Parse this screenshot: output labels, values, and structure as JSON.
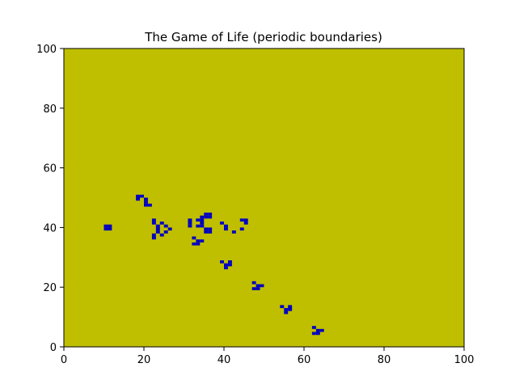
{
  "chart_data": {
    "type": "heatmap",
    "title": "The Game of Life (periodic boundaries)",
    "xlabel": "",
    "ylabel": "",
    "xlim": [
      0,
      100
    ],
    "ylim": [
      0,
      100
    ],
    "xticks": [
      0,
      20,
      40,
      60,
      80,
      100
    ],
    "yticks": [
      0,
      20,
      40,
      60,
      80,
      100
    ],
    "grid": false,
    "colors": {
      "dead": "#bfbf00",
      "alive": "#0000bf"
    },
    "alive_cells": [
      [
        10,
        39
      ],
      [
        10,
        40
      ],
      [
        11,
        39
      ],
      [
        11,
        40
      ],
      [
        18,
        49
      ],
      [
        18,
        50
      ],
      [
        19,
        50
      ],
      [
        20,
        48
      ],
      [
        20,
        49
      ],
      [
        20,
        47
      ],
      [
        21,
        47
      ],
      [
        22,
        42
      ],
      [
        22,
        41
      ],
      [
        22,
        37
      ],
      [
        22,
        36
      ],
      [
        23,
        40
      ],
      [
        23,
        39
      ],
      [
        23,
        38
      ],
      [
        24,
        41
      ],
      [
        24,
        37
      ],
      [
        25,
        40
      ],
      [
        25,
        38
      ],
      [
        26,
        39
      ],
      [
        31,
        42
      ],
      [
        31,
        41
      ],
      [
        31,
        40
      ],
      [
        32,
        36
      ],
      [
        32,
        34
      ],
      [
        33,
        42
      ],
      [
        33,
        40
      ],
      [
        33,
        35
      ],
      [
        33,
        34
      ],
      [
        34,
        43
      ],
      [
        34,
        42
      ],
      [
        34,
        41
      ],
      [
        34,
        40
      ],
      [
        34,
        35
      ],
      [
        35,
        44
      ],
      [
        35,
        43
      ],
      [
        35,
        39
      ],
      [
        35,
        38
      ],
      [
        36,
        44
      ],
      [
        36,
        43
      ],
      [
        36,
        39
      ],
      [
        36,
        38
      ],
      [
        39,
        41
      ],
      [
        39,
        28
      ],
      [
        40,
        40
      ],
      [
        40,
        39
      ],
      [
        40,
        27
      ],
      [
        40,
        26
      ],
      [
        41,
        28
      ],
      [
        41,
        27
      ],
      [
        42,
        38
      ],
      [
        44,
        42
      ],
      [
        44,
        39
      ],
      [
        45,
        42
      ],
      [
        45,
        41
      ],
      [
        47,
        21
      ],
      [
        47,
        19
      ],
      [
        48,
        20
      ],
      [
        48,
        19
      ],
      [
        49,
        20
      ],
      [
        54,
        13
      ],
      [
        55,
        12
      ],
      [
        55,
        11
      ],
      [
        56,
        13
      ],
      [
        56,
        12
      ],
      [
        62,
        6
      ],
      [
        62,
        4
      ],
      [
        63,
        5
      ],
      [
        63,
        4
      ],
      [
        64,
        5
      ]
    ]
  }
}
